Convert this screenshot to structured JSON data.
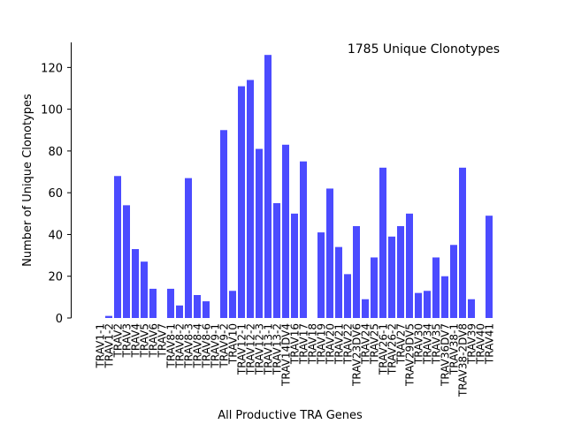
{
  "chart_data": {
    "type": "bar",
    "annotation": "1785 Unique Clonotypes",
    "xlabel": "All Productive TRA Genes",
    "ylabel": "Number of Unique Clonotypes",
    "ylim": [
      0,
      132
    ],
    "yticks": [
      0,
      20,
      40,
      60,
      80,
      100,
      120
    ],
    "bar_color": "#4b4bff",
    "grid": false,
    "categories": [
      "TRAV1-1",
      "TRAV1-2",
      "TRAV2",
      "TRAV3",
      "TRAV4",
      "TRAV5",
      "TRAV6",
      "TRAV7",
      "TRAV8-1",
      "TRAV8-2",
      "TRAV8-3",
      "TRAV8-4",
      "TRAV8-6",
      "TRAV9-1",
      "TRAV9-2",
      "TRAV10",
      "TRAV12-1",
      "TRAV12-2",
      "TRAV12-3",
      "TRAV13-1",
      "TRAV13-2",
      "TRAV14DV4",
      "TRAV16",
      "TRAV17",
      "TRAV18",
      "TRAV19",
      "TRAV20",
      "TRAV21",
      "TRAV22",
      "TRAV23DV6",
      "TRAV24",
      "TRAV25",
      "TRAV26-1",
      "TRAV26-2",
      "TRAV27",
      "TRAV29DV5",
      "TRAV30",
      "TRAV34",
      "TRAV35",
      "TRAV36DV7",
      "TRAV38-1",
      "TRAV38-2DV8",
      "TRAV39",
      "TRAV40",
      "TRAV41"
    ],
    "values": [
      0,
      1,
      68,
      54,
      33,
      27,
      14,
      0,
      14,
      6,
      67,
      11,
      8,
      0,
      90,
      13,
      111,
      114,
      81,
      126,
      55,
      83,
      50,
      75,
      0,
      41,
      62,
      34,
      21,
      44,
      9,
      29,
      72,
      39,
      44,
      50,
      12,
      13,
      29,
      20,
      35,
      72,
      9,
      0,
      49
    ]
  }
}
